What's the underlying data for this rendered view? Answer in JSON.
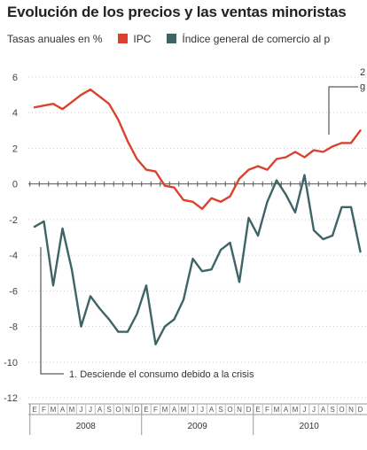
{
  "title": "Evolución de los precios y las ventas minoristas",
  "legend": {
    "prefix": "Tasas anuales en %",
    "items": [
      {
        "label": "IPC",
        "color": "#d9432e"
      },
      {
        "label": "Índice general de comercio al p",
        "color": "#3f6466"
      }
    ]
  },
  "annotations": {
    "note1": "1. Desciende el consumo debido a la crisis",
    "note2_a": "2",
    "note2_b": "g"
  },
  "chart_data": {
    "type": "line",
    "ylim": [
      -12,
      6
    ],
    "yticks": [
      6,
      4,
      2,
      0,
      -2,
      -4,
      -6,
      -8,
      -10,
      -12
    ],
    "month_labels": [
      "E",
      "F",
      "M",
      "A",
      "M",
      "J",
      "J",
      "A",
      "S",
      "O",
      "N",
      "D",
      "E",
      "F",
      "M",
      "A",
      "M",
      "J",
      "J",
      "A",
      "S",
      "O",
      "N",
      "D",
      "E",
      "F",
      "M",
      "A",
      "M",
      "J",
      "J",
      "A",
      "S",
      "O",
      "N",
      "D"
    ],
    "year_labels": [
      "2008",
      "2009",
      "2010"
    ],
    "series": [
      {
        "name": "IPC",
        "color": "#d9432e",
        "values": [
          4.3,
          4.4,
          4.5,
          4.2,
          4.6,
          5.0,
          5.3,
          4.9,
          4.5,
          3.6,
          2.4,
          1.4,
          0.8,
          0.7,
          -0.1,
          -0.2,
          -0.9,
          -1.0,
          -1.4,
          -0.8,
          -1.0,
          -0.7,
          0.3,
          0.8,
          1.0,
          0.8,
          1.4,
          1.5,
          1.8,
          1.5,
          1.9,
          1.8,
          2.1,
          2.3,
          2.3,
          3.0
        ]
      },
      {
        "name": "Índice general de comercio al p",
        "color": "#3f6466",
        "values": [
          -2.4,
          -2.1,
          -5.7,
          -2.5,
          -4.8,
          -8.0,
          -6.3,
          -7.0,
          -7.6,
          -8.3,
          -8.3,
          -7.3,
          -5.7,
          -9.0,
          -8.0,
          -7.6,
          -6.5,
          -4.2,
          -4.9,
          -4.8,
          -3.7,
          -3.3,
          -5.5,
          -1.9,
          -2.9,
          -1.0,
          0.2,
          -0.6,
          -1.6,
          0.5,
          -2.6,
          -3.1,
          -2.9,
          -1.3,
          -1.3,
          -3.8
        ]
      }
    ]
  }
}
